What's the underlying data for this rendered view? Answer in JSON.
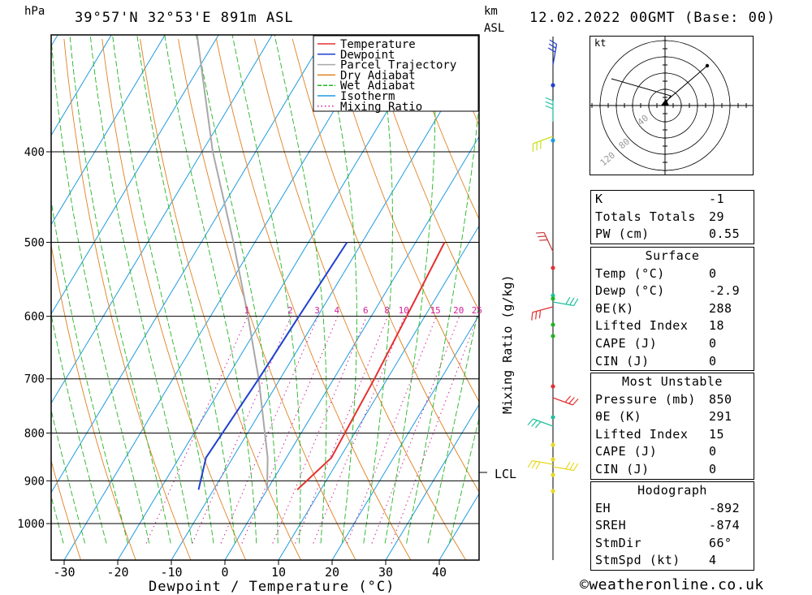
{
  "header": {
    "hpa_unit": "hPa",
    "location": "39°57'N  32°53'E  891m  ASL",
    "km_unit": "km",
    "asl_unit": "ASL",
    "datetime": "12.02.2022  00GMT  (Base: 00)"
  },
  "footer": {
    "copyright": "©weatheronline.co.uk"
  },
  "chart_data": {
    "type": "skew-t",
    "xlabel": "Dewpoint / Temperature (°C)",
    "ylabel": "hPa",
    "x_ticks": [
      -30,
      -20,
      -10,
      0,
      10,
      20,
      30,
      40
    ],
    "pressure_ticks": [
      400,
      500,
      600,
      700,
      800,
      900,
      1000
    ],
    "pressure_range": [
      300,
      1050
    ],
    "legend": {
      "position": "top-right",
      "items": [
        {
          "name": "Temperature",
          "color": "#e53030"
        },
        {
          "name": "Dewpoint",
          "color": "#2040d0"
        },
        {
          "name": "Parcel Trajectory",
          "color": "#a8a8a8"
        },
        {
          "name": "Dry Adiabat",
          "color": "#e08020"
        },
        {
          "name": "Wet Adiabat",
          "color": "#22b422"
        },
        {
          "name": "Isotherm",
          "color": "#1e9be0"
        },
        {
          "name": "Mixing Ratio",
          "color": "#d0209a"
        }
      ]
    },
    "mixing_ratio_axis_label": "Mixing Ratio (g/kg)",
    "mixing_ratio_labels": [
      "1",
      "2",
      "3",
      "4",
      "6",
      "8",
      "10",
      "15",
      "20",
      "25"
    ],
    "lcl_label": "LCL",
    "temperature_profile": [
      {
        "p": 920,
        "t": 5.6
      },
      {
        "p": 850,
        "t": 8.4
      },
      {
        "p": 700,
        "t": 7.6
      },
      {
        "p": 600,
        "t": 6.6
      },
      {
        "p": 500,
        "t": 5.4
      }
    ],
    "dewpoint_profile": [
      {
        "p": 920,
        "t": -12.8
      },
      {
        "p": 850,
        "t": -15.0
      },
      {
        "p": 700,
        "t": -14.0
      },
      {
        "p": 600,
        "t": -13.5
      },
      {
        "p": 500,
        "t": -12.8
      }
    ],
    "parcel_trajectory": [
      {
        "p": 920,
        "t": 0
      },
      {
        "p": 850,
        "t": -3.5
      },
      {
        "p": 700,
        "t": -14
      },
      {
        "p": 600,
        "t": -23
      },
      {
        "p": 500,
        "t": -34
      },
      {
        "p": 400,
        "t": -48
      },
      {
        "p": 300,
        "t": -64
      }
    ],
    "hodograph": {
      "unit_label": "kt",
      "ring_labels": [
        "40",
        "80",
        "120"
      ]
    }
  },
  "indices": {
    "top": [
      {
        "label": "K",
        "value": "-1"
      },
      {
        "label": "Totals Totals",
        "value": "29"
      },
      {
        "label": "PW (cm)",
        "value": "0.55"
      }
    ],
    "surface": {
      "title": "Surface",
      "rows": [
        {
          "label": "Temp (°C)",
          "value": "0"
        },
        {
          "label": "Dewp (°C)",
          "value": "-2.9"
        },
        {
          "label": "θE(K)",
          "value": "288"
        },
        {
          "label": "Lifted Index",
          "value": "18"
        },
        {
          "label": "CAPE (J)",
          "value": "0"
        },
        {
          "label": "CIN (J)",
          "value": "0"
        }
      ]
    },
    "most_unstable": {
      "title": "Most Unstable",
      "rows": [
        {
          "label": "Pressure (mb)",
          "value": "850"
        },
        {
          "label": "θE (K)",
          "value": "291"
        },
        {
          "label": "Lifted Index",
          "value": "15"
        },
        {
          "label": "CAPE (J)",
          "value": "0"
        },
        {
          "label": "CIN (J)",
          "value": "0"
        }
      ]
    },
    "hodograph_box": {
      "title": "Hodograph",
      "rows": [
        {
          "label": "EH",
          "value": "-892"
        },
        {
          "label": "SREH",
          "value": "-874"
        },
        {
          "label": "StmDir",
          "value": "66°"
        },
        {
          "label": "StmSpd (kt)",
          "value": "4"
        }
      ]
    }
  }
}
